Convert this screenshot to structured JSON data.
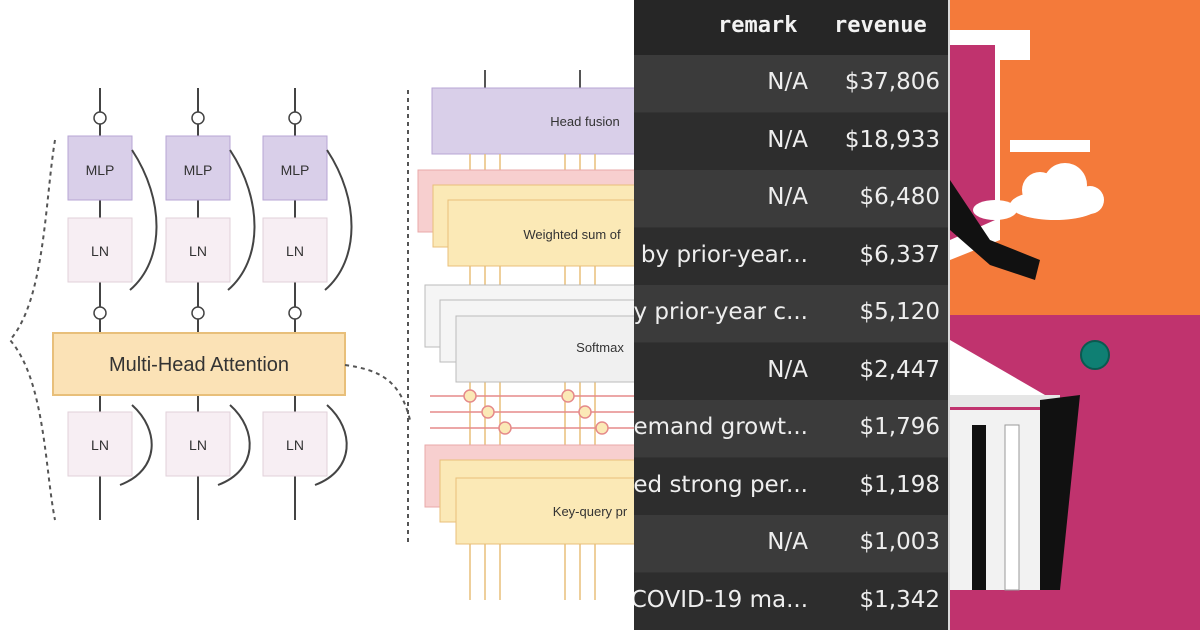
{
  "diagram": {
    "block_labels": {
      "mlp": "MLP",
      "ln": "LN",
      "mha": "Multi-Head Attention",
      "head_fusion": "Head fusion",
      "weighted_sum": "Weighted sum of",
      "softmax": "Softmax",
      "key_query": "Key-query pr"
    },
    "colors": {
      "mlp": "#d9cfe9",
      "ln": "#f7eef3",
      "mha": "#fbe2b6",
      "yellow": "#fbe9b6",
      "pink": "#f7cfcf",
      "gray": "#f0f0f0"
    }
  },
  "table": {
    "columns": [
      "remark",
      "revenue"
    ],
    "rows": [
      {
        "remark": "N/A",
        "revenue": "$37,806"
      },
      {
        "remark": "N/A",
        "revenue": "$18,933"
      },
      {
        "remark": "N/A",
        "revenue": "$6,480"
      },
      {
        "remark": "n by prior-year...",
        "revenue": "$6,337"
      },
      {
        "remark": "by prior-year c...",
        "revenue": "$5,120"
      },
      {
        "remark": "N/A",
        "revenue": "$2,447"
      },
      {
        "remark": "demand growt...",
        "revenue": "$1,796"
      },
      {
        "remark": "ued strong per...",
        "revenue": "$1,198"
      },
      {
        "remark": "N/A",
        "revenue": "$1,003"
      },
      {
        "remark": "COVID-19 ma...",
        "revenue": "$1,342"
      }
    ]
  },
  "illustration": {
    "icons": [
      "cloud-icon",
      "building-icon",
      "dot-icon"
    ],
    "colors": {
      "orange": "#f47a3a",
      "magenta": "#c0336e",
      "teal": "#0f7f73"
    }
  }
}
